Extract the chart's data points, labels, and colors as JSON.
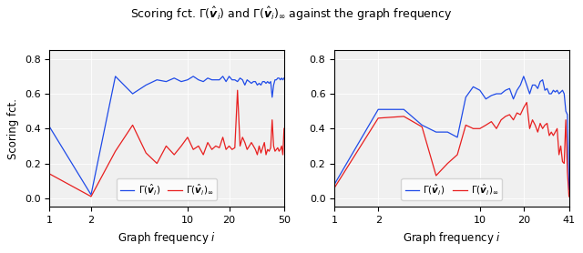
{
  "subplot1": {
    "xlabel": "Graph frequency $i$",
    "ylabel": "Scoring fct.",
    "xlim": [
      1,
      50
    ],
    "ylim": [
      -0.05,
      0.85
    ],
    "xticks": [
      1,
      2,
      10,
      20,
      50
    ],
    "yticks": [
      0.0,
      0.2,
      0.4,
      0.6,
      0.8
    ],
    "blue_x": [
      1,
      2,
      3,
      4,
      5,
      6,
      7,
      8,
      9,
      10,
      11,
      12,
      13,
      14,
      15,
      16,
      17,
      18,
      19,
      20,
      21,
      22,
      23,
      24,
      25,
      26,
      27,
      28,
      29,
      30,
      31,
      32,
      33,
      34,
      35,
      36,
      37,
      38,
      39,
      40,
      41,
      42,
      43,
      44,
      45,
      46,
      47,
      48,
      49,
      50
    ],
    "blue_y": [
      0.41,
      0.02,
      0.7,
      0.6,
      0.65,
      0.68,
      0.67,
      0.69,
      0.67,
      0.68,
      0.7,
      0.68,
      0.67,
      0.69,
      0.68,
      0.68,
      0.68,
      0.7,
      0.67,
      0.7,
      0.68,
      0.68,
      0.67,
      0.69,
      0.68,
      0.65,
      0.68,
      0.67,
      0.66,
      0.67,
      0.67,
      0.65,
      0.66,
      0.65,
      0.67,
      0.67,
      0.66,
      0.67,
      0.66,
      0.67,
      0.58,
      0.65,
      0.68,
      0.68,
      0.69,
      0.69,
      0.68,
      0.69,
      0.68,
      0.69
    ],
    "red_x": [
      1,
      2,
      3,
      4,
      5,
      6,
      7,
      8,
      9,
      10,
      11,
      12,
      13,
      14,
      15,
      16,
      17,
      18,
      19,
      20,
      21,
      22,
      23,
      24,
      25,
      26,
      27,
      28,
      29,
      30,
      31,
      32,
      33,
      34,
      35,
      36,
      37,
      38,
      39,
      40,
      41,
      42,
      43,
      44,
      45,
      46,
      47,
      48,
      49,
      50
    ],
    "red_y": [
      0.14,
      0.01,
      0.27,
      0.42,
      0.26,
      0.2,
      0.3,
      0.25,
      0.3,
      0.35,
      0.28,
      0.3,
      0.25,
      0.32,
      0.28,
      0.3,
      0.29,
      0.35,
      0.28,
      0.3,
      0.28,
      0.29,
      0.62,
      0.3,
      0.35,
      0.32,
      0.28,
      0.3,
      0.32,
      0.3,
      0.28,
      0.25,
      0.3,
      0.26,
      0.29,
      0.32,
      0.25,
      0.28,
      0.27,
      0.29,
      0.45,
      0.3,
      0.27,
      0.28,
      0.29,
      0.27,
      0.28,
      0.3,
      0.25,
      0.4
    ]
  },
  "subplot2": {
    "xlabel": "Graph frequency $i$",
    "xlim": [
      1,
      41
    ],
    "ylim": [
      -0.05,
      0.85
    ],
    "xticks": [
      1,
      2,
      10,
      20,
      41
    ],
    "yticks": [
      0.0,
      0.2,
      0.4,
      0.6,
      0.8
    ],
    "blue_x": [
      1,
      2,
      3,
      4,
      5,
      6,
      7,
      8,
      9,
      10,
      11,
      12,
      13,
      14,
      15,
      16,
      17,
      18,
      19,
      20,
      21,
      22,
      23,
      24,
      25,
      26,
      27,
      28,
      29,
      30,
      31,
      32,
      33,
      34,
      35,
      36,
      37,
      38,
      39,
      40,
      41
    ],
    "blue_y": [
      0.08,
      0.51,
      0.51,
      0.42,
      0.38,
      0.38,
      0.35,
      0.58,
      0.64,
      0.62,
      0.57,
      0.59,
      0.6,
      0.6,
      0.62,
      0.63,
      0.57,
      0.62,
      0.65,
      0.7,
      0.65,
      0.6,
      0.65,
      0.65,
      0.63,
      0.67,
      0.68,
      0.62,
      0.63,
      0.6,
      0.6,
      0.62,
      0.61,
      0.62,
      0.6,
      0.61,
      0.62,
      0.6,
      0.5,
      0.48,
      0.05
    ],
    "red_x": [
      1,
      2,
      3,
      4,
      5,
      6,
      7,
      8,
      9,
      10,
      11,
      12,
      13,
      14,
      15,
      16,
      17,
      18,
      19,
      20,
      21,
      22,
      23,
      24,
      25,
      26,
      27,
      28,
      29,
      30,
      31,
      32,
      33,
      34,
      35,
      36,
      37,
      38,
      39,
      40,
      41
    ],
    "red_y": [
      0.06,
      0.46,
      0.47,
      0.41,
      0.13,
      0.2,
      0.25,
      0.42,
      0.4,
      0.4,
      0.42,
      0.44,
      0.4,
      0.45,
      0.47,
      0.48,
      0.45,
      0.49,
      0.48,
      0.52,
      0.55,
      0.4,
      0.45,
      0.42,
      0.38,
      0.43,
      0.4,
      0.42,
      0.43,
      0.36,
      0.38,
      0.36,
      0.38,
      0.4,
      0.25,
      0.3,
      0.21,
      0.2,
      0.45,
      0.15,
      0.01
    ]
  },
  "blue_color": "#1f4be8",
  "red_color": "#e81f1f",
  "legend_blue": "$\\Gamma(\\hat{\\boldsymbol{v}}_i)$",
  "legend_red": "$\\Gamma(\\hat{\\boldsymbol{v}}_i)_\\infty$",
  "linewidth": 0.9,
  "bg_color": "#f0f0f0",
  "fig_title": "Scoring fct. $\\Gamma(\\hat{\\boldsymbol{v}}_i)$ and $\\Gamma(\\hat{\\boldsymbol{v}}_i)_\\infty$ against the graph frequency"
}
